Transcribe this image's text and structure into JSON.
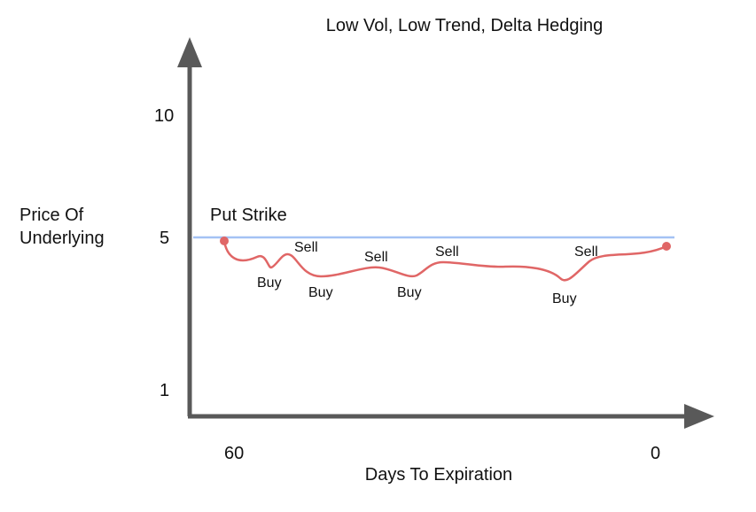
{
  "title": "Low Vol, Low Trend, Delta Hedging",
  "y_axis": {
    "label_line1": "Price Of",
    "label_line2": "Underlying",
    "ticks": [
      "10",
      "5",
      "1"
    ]
  },
  "x_axis": {
    "label": "Days To Expiration",
    "ticks": [
      "60",
      "0"
    ]
  },
  "strike_line": {
    "label": "Put Strike",
    "color": "#a4c2f4"
  },
  "price_path_color": "#e06666",
  "annotations": {
    "sell": [
      "Sell",
      "Sell",
      "Sell",
      "Sell"
    ],
    "buy": [
      "Buy",
      "Buy",
      "Buy",
      "Buy"
    ]
  },
  "axis_color": "#595959"
}
